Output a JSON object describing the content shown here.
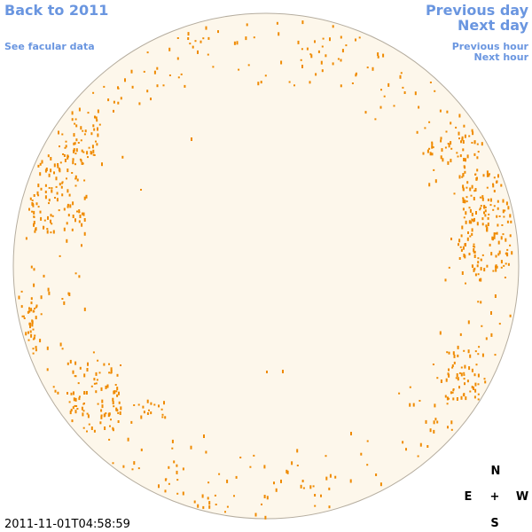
{
  "links": {
    "back_to_year": "Back to 2011",
    "facular_data": "See facular data",
    "previous_day": "Previous day",
    "next_day": "Next day",
    "previous_hour": "Previous hour",
    "next_hour": "Next hour"
  },
  "compass": {
    "north": "N",
    "east": "E",
    "center": "+",
    "west": "W",
    "south": "S"
  },
  "timestamp": "2011-11-01T04:58:59"
}
